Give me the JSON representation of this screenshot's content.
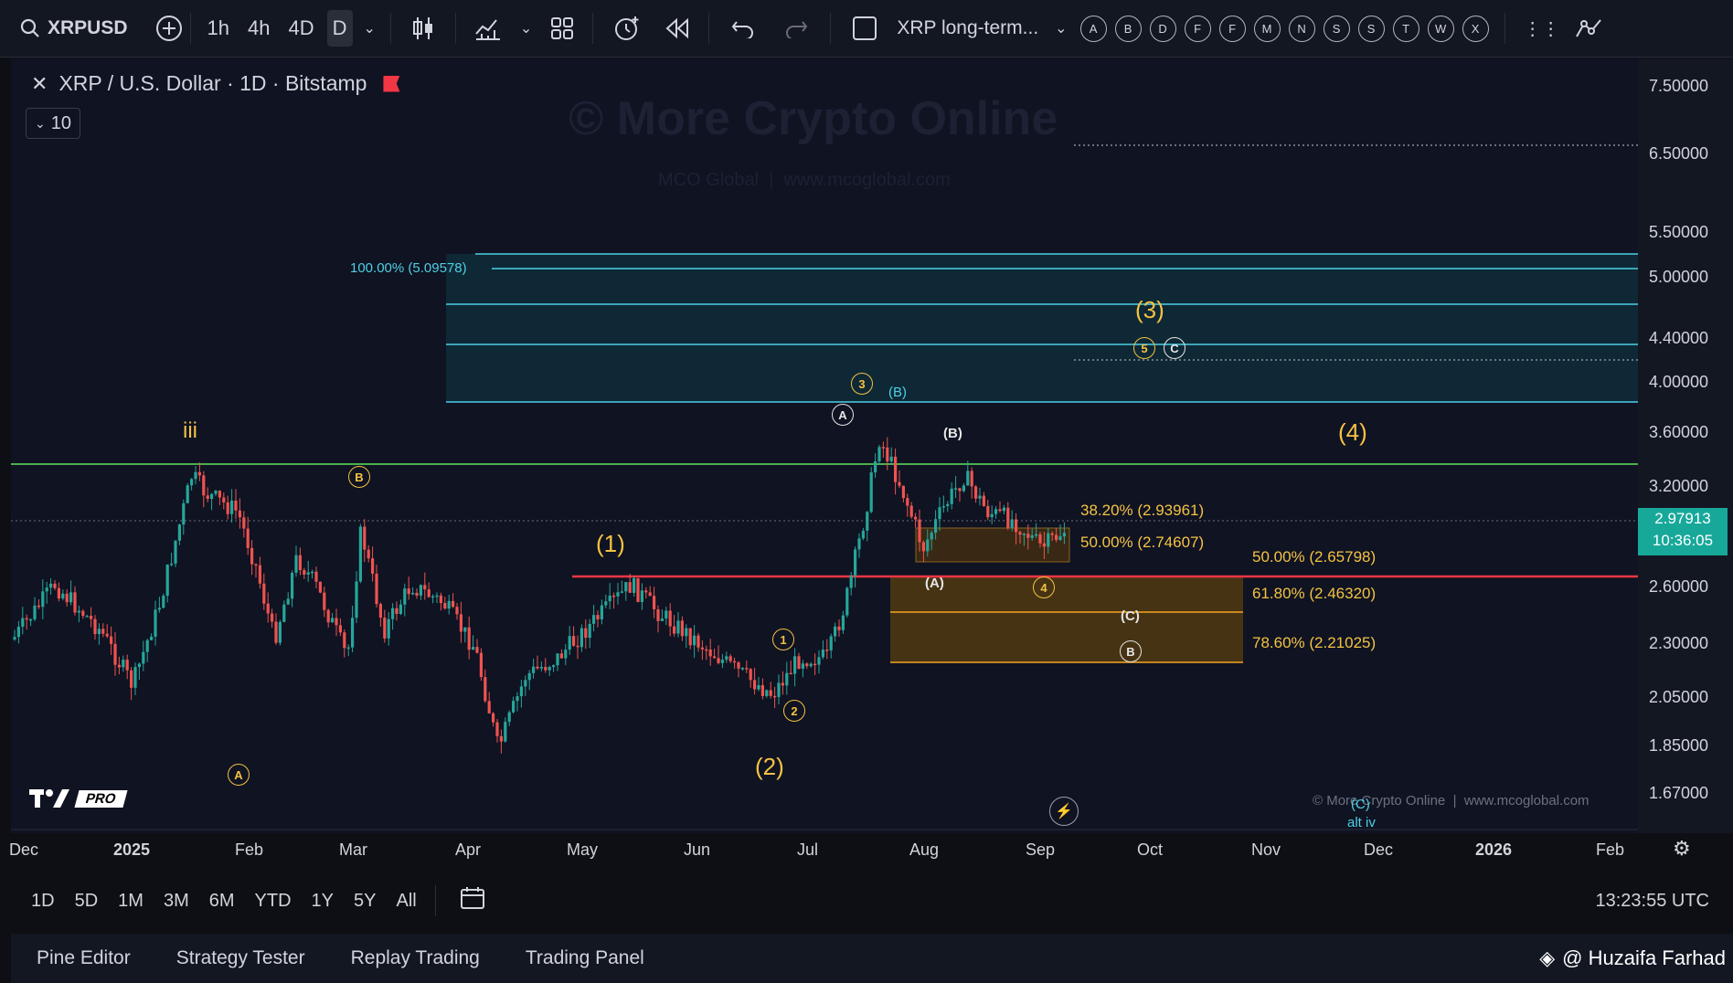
{
  "toolbar": {
    "symbol": "XRPUSD",
    "intervals": [
      "1h",
      "4h",
      "4D",
      "D"
    ],
    "layout_name": "XRP long-term...",
    "alert_letters": [
      "A",
      "B",
      "D",
      "F",
      "F",
      "M",
      "N",
      "S",
      "S",
      "T",
      "W",
      "X"
    ]
  },
  "chart_header": {
    "title": "XRP / U.S. Dollar · 1D · Bitstamp",
    "indicator_count": "10"
  },
  "watermark": {
    "main": "© More Crypto Online",
    "sub": "MCO Global  |  www.mcoglobal.com",
    "footer": "© More Crypto Online  |  www.mcoglobal.com"
  },
  "y_axis": [
    "7.50000",
    "6.50000",
    "5.50000",
    "5.00000",
    "4.40000",
    "4.00000",
    "3.60000",
    "3.20000",
    "2.60000",
    "2.30000",
    "2.05000",
    "1.85000",
    "1.67000"
  ],
  "current_price": {
    "value": "2.97913",
    "countdown": "10:36:05"
  },
  "x_axis": [
    "Dec",
    "2025",
    "Feb",
    "Mar",
    "Apr",
    "May",
    "Jun",
    "Jul",
    "Aug",
    "Sep",
    "Oct",
    "Nov",
    "Dec",
    "2026",
    "Feb"
  ],
  "fib_labels": {
    "top": "100.00% (5.09578)",
    "r382": "38.20% (2.93961)",
    "r500a": "50.00% (2.74607)",
    "r500b": "50.00% (2.65798)",
    "r618": "61.80% (2.46320)",
    "r786": "78.60% (2.21025)"
  },
  "waves": {
    "iii": "iii",
    "w1": "(1)",
    "w2": "(2)",
    "w3": "(3)",
    "w4": "(4)",
    "A_paren": "(A)",
    "B_paren": "(B)",
    "B_cyan": "(B)",
    "C_paren": "(C)",
    "C_cyan": "(C)",
    "c1": "1",
    "c2": "2",
    "c3": "3",
    "c4": "4",
    "c5": "5",
    "cA": "A",
    "cB": "B",
    "cC": "C",
    "altiv": "alt iv"
  },
  "bottom_bar": {
    "ranges": [
      "1D",
      "5D",
      "1M",
      "3M",
      "6M",
      "YTD",
      "1Y",
      "5Y",
      "All"
    ],
    "time": "13:23:55 UTC"
  },
  "panel_tabs": [
    "Pine Editor",
    "Strategy Tester",
    "Replay Trading",
    "Trading Panel"
  ],
  "credit": "@ Huzaifa Farhad",
  "logo_text": "PRO",
  "colors": {
    "up": "#26a69a",
    "down": "#ef5350",
    "green_line": "#4caf50",
    "red_line": "#f23645",
    "cyan": "#4fd0e6",
    "orange": "#f5a623"
  }
}
